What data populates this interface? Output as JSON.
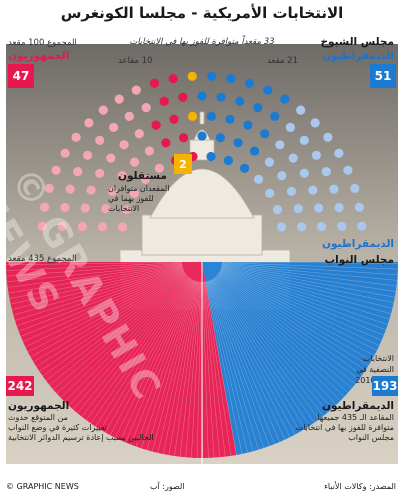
{
  "title": "الانتخابات الأمريكية - مجلسا الكونغرس",
  "senate": {
    "dem_label": "مجلس الشيوخ",
    "dem_sub": "الديمقراطيون",
    "dem_count": "51",
    "rep_label": "الجمهوريون",
    "rep_total_note": "المجموع 100 مقعد",
    "rep_count": "47",
    "contested_banner": "33 مقعداً متوافرة للفوز بها في الانتخابات",
    "dem_contested": "21 مقعد",
    "rep_contested": "10 مقاعد",
    "independents_label": "مستقلون",
    "independents_count": "2",
    "independents_note_1": "المقعدان متوافران",
    "independents_note_2": "للفوز بهما في",
    "independents_note_3": "الانتخابات"
  },
  "house": {
    "label": "مجلس النواب",
    "dem_sub": "الديمقراطيون",
    "total_note": "المجموع 435 مقعد",
    "rep_count": "242",
    "dem_count": "193",
    "rep_label": "الجمهوريون",
    "rep_note_1": "من المتوقع حدوث",
    "rep_note_2": "تغييرات كثيرة في وضع النواب",
    "rep_note_3": "الحاليين بسبب إعادة ترسيم الدوائر الانتخابية",
    "midterm_note_1": "الانتخابات",
    "midterm_note_2": "النصفية في",
    "midterm_note_3": "العام 2010",
    "dem_note_1": "المقاعد الـ 435 جميعها",
    "dem_note_2": "متوافرة للفوز بها في انتخابات",
    "dem_note_3": "مجلس النواب"
  },
  "footer": {
    "credit": "© GRAPHIC NEWS",
    "photo": "الصور: آب",
    "source": "المصدر: وكالات الأنباء"
  },
  "watermark": "© GRAPHIC NEWS",
  "colors": {
    "rep": "#e8184e",
    "rep_light": "#f3a7b3",
    "dem": "#1b7bd3",
    "dem_light": "#a9c8ec",
    "independent": "#f5b400"
  },
  "chart_data": [
    {
      "type": "pie",
      "title": "مجلس الشيوخ",
      "categories": [
        "الديمقراطيون",
        "مستقلون",
        "الجمهوريون"
      ],
      "values": [
        51,
        2,
        47
      ],
      "contested": {
        "الديمقراطيون": 21,
        "مستقلون": 2,
        "الجمهوريون": 10
      },
      "total": 100
    },
    {
      "type": "pie",
      "title": "مجلس النواب",
      "categories": [
        "الديمقراطيون",
        "الجمهوريون"
      ],
      "values": [
        193,
        242
      ],
      "total": 435
    }
  ]
}
